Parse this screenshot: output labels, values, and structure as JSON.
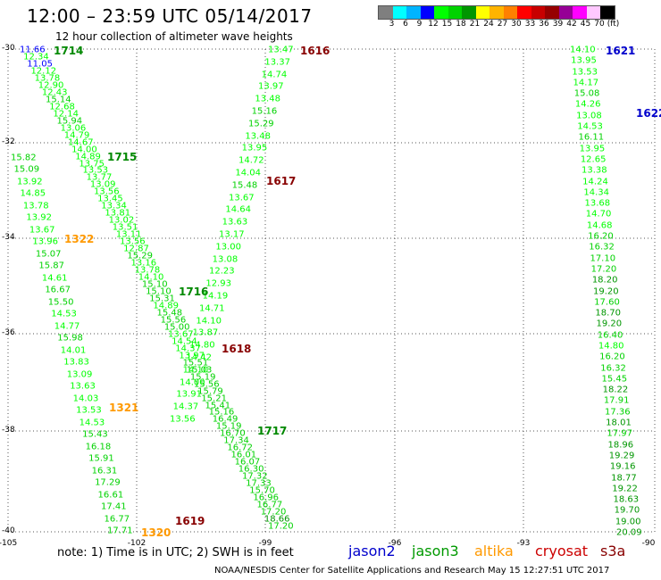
{
  "title": "12:00 – 23:59 UTC 05/14/2017",
  "subtitle": "12 hour collection of altimeter wave heights",
  "colorbar": {
    "colors": [
      "#7f7f7f",
      "#00ffff",
      "#00b4ff",
      "#0000ff",
      "#00ff00",
      "#00d200",
      "#009600",
      "#ffff00",
      "#ffb400",
      "#ff8000",
      "#ff0000",
      "#c80000",
      "#960000",
      "#960096",
      "#ff00ff",
      "#ffc8ff",
      "#000000"
    ],
    "ticks": [
      "3",
      "6",
      "9",
      "12",
      "15",
      "18",
      "21",
      "24",
      "27",
      "30",
      "33",
      "36",
      "39",
      "42",
      "45",
      "70",
      "(ft)"
    ]
  },
  "lat_labels": [
    "-30",
    "-32",
    "-34",
    "-36",
    "-38",
    "-40"
  ],
  "lon_labels": [
    "-105",
    "-102",
    "-99",
    "-96",
    "-93",
    "-90"
  ],
  "passes": [
    {
      "label": "1714",
      "color": "#008800"
    },
    {
      "label": "1715",
      "color": "#008800"
    },
    {
      "label": "1716",
      "color": "#008800"
    },
    {
      "label": "1717",
      "color": "#008800"
    },
    {
      "label": "1616",
      "color": "#880000"
    },
    {
      "label": "1617",
      "color": "#880000"
    },
    {
      "label": "1618",
      "color": "#880000"
    },
    {
      "label": "1619",
      "color": "#880000"
    },
    {
      "label": "1621",
      "color": "#0000cc"
    },
    {
      "label": "1622",
      "color": "#0000cc"
    },
    {
      "label": "1320",
      "color": "#ff9900"
    },
    {
      "label": "1321",
      "color": "#ff9900"
    },
    {
      "label": "1322",
      "color": "#ff9900"
    }
  ],
  "tracks": {
    "t1714": [
      "11.66",
      "12.34",
      "11.05",
      "12.12",
      "13.78",
      "12.90",
      "12.43",
      "15.14",
      "12.68",
      "12.14",
      "15.94",
      "13.06",
      "14.79",
      "14.67",
      "14.00",
      "14.89",
      "13.75",
      "13.53",
      "13.77",
      "13.09",
      "13.56",
      "13.45",
      "13.34",
      "13.81",
      "13.02",
      "13.51",
      "13.11",
      "13.56",
      "12.87",
      "15.29",
      "13.16",
      "13.78",
      "14.10",
      "15.10",
      "15.10",
      "15.31",
      "14.89",
      "15.48",
      "15.56",
      "15.00",
      "13.67",
      "14.54",
      "14.37",
      "13.97",
      "15.51",
      "15.03",
      "15.19",
      "15.56",
      "15.79",
      "15.21",
      "15.41",
      "15.16",
      "16.49",
      "15.19",
      "16.70",
      "17.34",
      "16.72",
      "16.01",
      "16.07",
      "16.30",
      "17.32",
      "17.33",
      "15.70",
      "16.96",
      "16.77",
      "17.20",
      "18.66",
      "17.20"
    ],
    "t1715": [
      "15.82",
      "15.09",
      "13.92",
      "14.85",
      "13.78",
      "13.92",
      "13.67",
      "13.96",
      "15.07",
      "15.87",
      "14.61",
      "16.67",
      "15.50",
      "14.53",
      "14.77",
      "15.98",
      "14.01",
      "13.83",
      "13.09",
      "13.63",
      "14.03",
      "13.53",
      "14.53",
      "15.43",
      "16.18",
      "15.91",
      "16.31",
      "17.29",
      "16.61",
      "17.41",
      "16.77",
      "17.71"
    ],
    "t1616": [
      "13.47",
      "13.37",
      "14.74",
      "13.97",
      "13.48",
      "15.16",
      "15.29",
      "13.48",
      "13.95",
      "14.72",
      "14.04",
      "15.48",
      "13.67",
      "14.64",
      "13.63",
      "13.17",
      "13.00",
      "13.08",
      "12.23",
      "12.93",
      "14.19",
      "14.71",
      "14.10",
      "13.87",
      "14.80",
      "14.42",
      "14.10",
      "14.00",
      "13.91",
      "14.37",
      "13.56"
    ],
    "t1621": [
      "14.10",
      "13.95",
      "13.53",
      "14.17",
      "15.08",
      "14.26",
      "13.08",
      "14.53",
      "16.11",
      "13.95",
      "12.65",
      "13.38",
      "14.24",
      "14.34",
      "13.68",
      "14.70",
      "14.68",
      "16.20",
      "16.32",
      "17.10",
      "17.20",
      "18.20",
      "19.20",
      "17.60",
      "18.70",
      "19.20",
      "16.40",
      "14.80",
      "16.20",
      "16.32",
      "15.45",
      "18.22",
      "17.91",
      "17.36",
      "18.01",
      "17.97",
      "18.96",
      "19.29",
      "19.16",
      "18.77",
      "19.22",
      "18.63",
      "19.70",
      "19.00",
      "20.09"
    ]
  },
  "note": "note:  1) Time is in UTC;  2) SWH is in feet",
  "satellites": [
    {
      "name": "jason2",
      "color": "#0000cc"
    },
    {
      "name": "jason3",
      "color": "#009900"
    },
    {
      "name": "altika",
      "color": "#ff9900"
    },
    {
      "name": "cryosat",
      "color": "#cc0000"
    },
    {
      "name": "s3a",
      "color": "#880000"
    }
  ],
  "credit": "NOAA/NESDIS Center for Satellite Applications and Research    May 15 12:27:51 UTC 2017"
}
